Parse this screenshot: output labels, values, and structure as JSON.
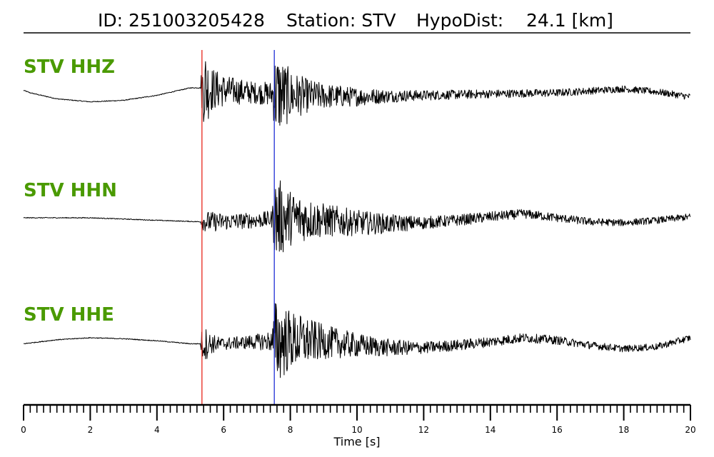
{
  "header": {
    "event_id": "ID: 251003205428",
    "station": "Station: STV",
    "hypodist": "HypoDist:    24.1 [km]"
  },
  "colors": {
    "label": "#4a9a00",
    "trace": "#000000",
    "p_pick": "#e8261c",
    "s_pick": "#1f2fd6",
    "axis": "#000000"
  },
  "chart_data": {
    "type": "line",
    "xlabel": "Time [s]",
    "xlim": [
      0,
      20
    ],
    "x_major_ticks": [
      0,
      2,
      4,
      6,
      8,
      10,
      12,
      14,
      16,
      18,
      20
    ],
    "x_tick_labels": [
      "0",
      "2",
      "4",
      "6",
      "8",
      "10",
      "12",
      "14",
      "16",
      "18",
      "20"
    ],
    "x_minor_step": 0.2,
    "picks": [
      {
        "phase": "P",
        "time": 5.35,
        "color": "#e8261c"
      },
      {
        "phase": "S",
        "time": 7.52,
        "color": "#1f2fd6"
      }
    ],
    "series": [
      {
        "name": "STV HHZ",
        "envelope": {
          "t": [
            0,
            0.5,
            1,
            1.5,
            2,
            2.5,
            3,
            3.5,
            4,
            4.5,
            5,
            5.3,
            5.35,
            5.45,
            5.6,
            5.8,
            6.1,
            6.5,
            7,
            7.45,
            7.55,
            7.7,
            8,
            8.5,
            9,
            10,
            11,
            12,
            14,
            16,
            18,
            20
          ],
          "amp": [
            0.01,
            0.01,
            0.01,
            0.01,
            0.01,
            0.01,
            0.01,
            0.01,
            0.01,
            0.01,
            0.01,
            0.01,
            0.6,
            1.0,
            0.55,
            0.45,
            0.35,
            0.3,
            0.25,
            0.3,
            1.0,
            0.9,
            0.6,
            0.4,
            0.3,
            0.22,
            0.15,
            0.12,
            0.1,
            0.09,
            0.08,
            0.08
          ]
        },
        "drift": {
          "t": [
            0,
            0.2,
            1,
            2,
            3,
            4,
            5,
            5.3,
            6,
            8,
            10,
            12,
            14,
            16,
            18,
            19,
            20
          ],
          "v": [
            0.05,
            0.0,
            -0.12,
            -0.18,
            -0.15,
            -0.05,
            0.1,
            0.1,
            0.05,
            -0.05,
            -0.08,
            -0.05,
            -0.02,
            0.0,
            0.08,
            0.02,
            -0.08
          ]
        }
      },
      {
        "name": "STV HHN",
        "envelope": {
          "t": [
            0,
            5.3,
            5.35,
            5.5,
            6,
            7,
            7.45,
            7.55,
            7.7,
            8,
            8.5,
            9,
            10,
            11,
            12,
            14,
            16,
            18,
            20
          ],
          "amp": [
            0.01,
            0.01,
            0.18,
            0.25,
            0.2,
            0.18,
            0.2,
            1.0,
            0.9,
            0.65,
            0.5,
            0.4,
            0.3,
            0.22,
            0.15,
            0.12,
            0.1,
            0.08,
            0.08
          ]
        },
        "drift": {
          "t": [
            0,
            2,
            4,
            5.3,
            6,
            7,
            8,
            9,
            10,
            11,
            12,
            13,
            14,
            15,
            16,
            17,
            18,
            19,
            20
          ],
          "v": [
            0.0,
            0.0,
            -0.05,
            -0.08,
            -0.08,
            -0.05,
            0.0,
            -0.05,
            -0.1,
            -0.12,
            -0.1,
            -0.05,
            0.02,
            0.08,
            0.0,
            -0.08,
            -0.1,
            -0.05,
            0.02
          ]
        }
      },
      {
        "name": "STV HHE",
        "envelope": {
          "t": [
            0,
            5.3,
            5.35,
            5.45,
            5.6,
            5.9,
            6.5,
            7,
            7.45,
            7.55,
            7.7,
            8,
            8.5,
            9,
            10,
            11,
            12,
            14,
            16,
            18,
            20
          ],
          "amp": [
            0.01,
            0.01,
            0.35,
            0.4,
            0.25,
            0.15,
            0.15,
            0.18,
            0.25,
            1.0,
            0.95,
            0.7,
            0.55,
            0.4,
            0.28,
            0.2,
            0.14,
            0.12,
            0.1,
            0.08,
            0.08
          ]
        },
        "drift": {
          "t": [
            0,
            1,
            2,
            3,
            4,
            5,
            5.3,
            6,
            7,
            8,
            9,
            10,
            11,
            12,
            13,
            14,
            15,
            16,
            17,
            18,
            19,
            20
          ],
          "v": [
            -0.02,
            0.06,
            0.1,
            0.08,
            0.04,
            -0.02,
            -0.02,
            -0.02,
            0.02,
            0.05,
            0.02,
            -0.05,
            -0.1,
            -0.1,
            -0.05,
            0.02,
            0.1,
            0.05,
            -0.05,
            -0.12,
            -0.08,
            0.1
          ]
        }
      }
    ]
  }
}
